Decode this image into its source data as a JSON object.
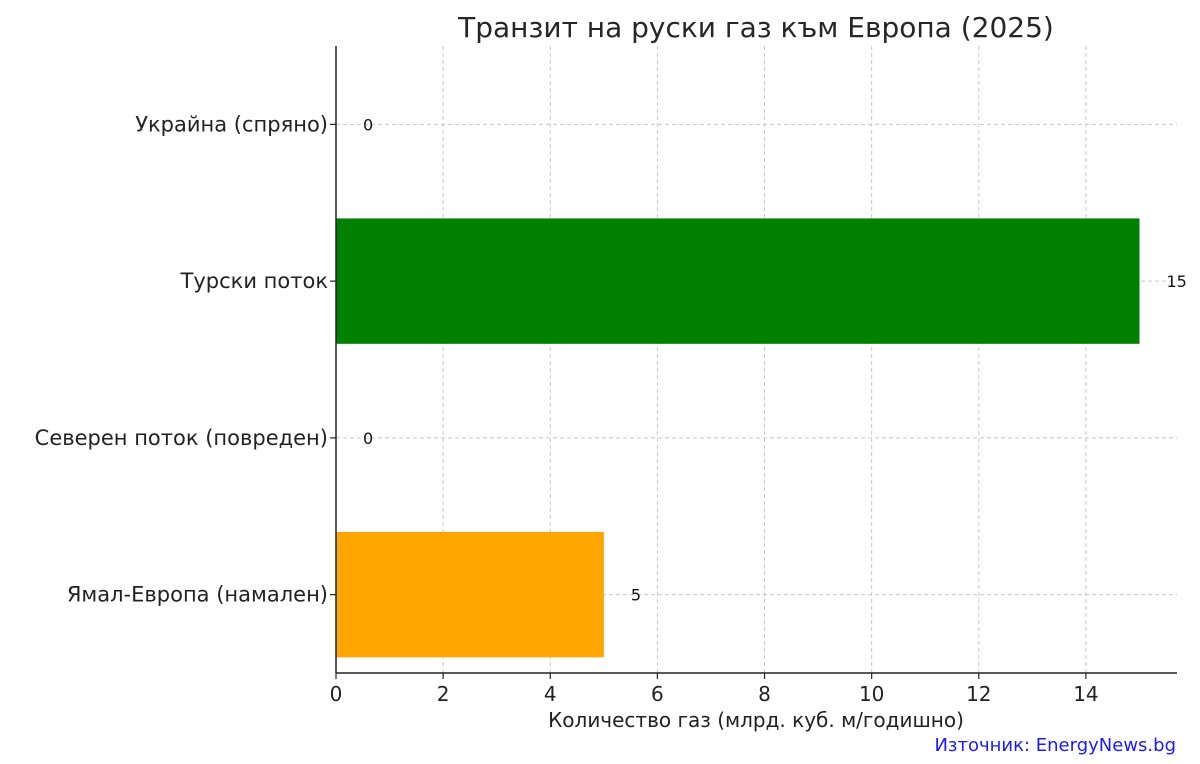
{
  "chart_data": {
    "type": "bar",
    "orientation": "horizontal",
    "title": "Транзит на руски газ към Европа (2025)",
    "xlabel": "Количество газ (млрд. куб. м/годишно)",
    "ylabel": "",
    "xlim": [
      0,
      15.7
    ],
    "xticks": [
      0,
      2,
      4,
      6,
      8,
      10,
      12,
      14
    ],
    "grid": true,
    "categories": [
      "Украйна (спряно)",
      "Турски поток",
      "Северен поток (повреден)",
      "Ямал-Европа (намален)"
    ],
    "values": [
      0,
      15,
      0,
      5
    ],
    "data_labels": [
      "0",
      "15",
      "0",
      "5"
    ],
    "colors": [
      "#d62728",
      "#008000",
      "#1f77b4",
      "#ffa500"
    ]
  },
  "source_label": "Източник: EnergyNews.bg"
}
